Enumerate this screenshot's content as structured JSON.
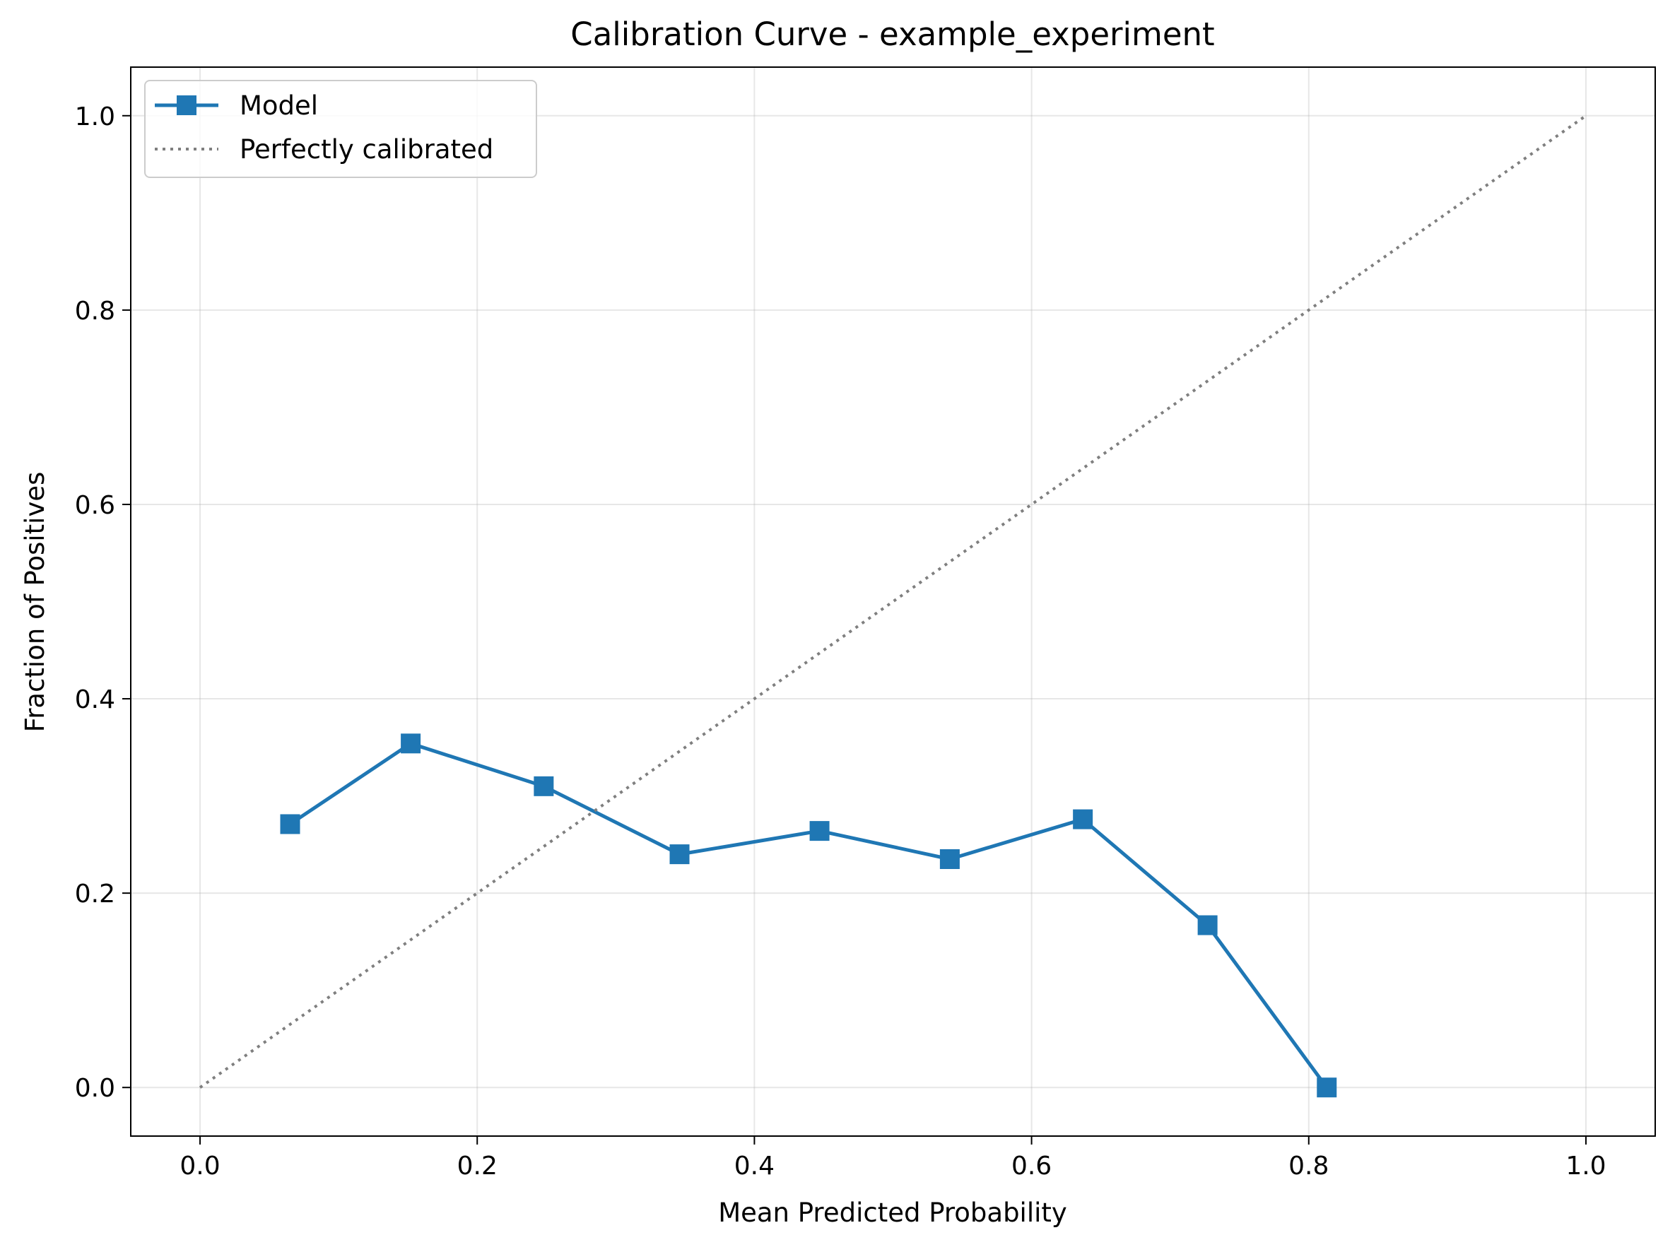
{
  "chart_data": {
    "type": "line",
    "title": "Calibration Curve - example_experiment",
    "xlabel": "Mean Predicted Probability",
    "ylabel": "Fraction of Positives",
    "xlim": [
      -0.05,
      1.05
    ],
    "ylim": [
      -0.05,
      1.05
    ],
    "xticks": [
      "0.0",
      "0.2",
      "0.4",
      "0.6",
      "0.8",
      "1.0"
    ],
    "yticks": [
      "0.0",
      "0.2",
      "0.4",
      "0.6",
      "0.8",
      "1.0"
    ],
    "grid": true,
    "legend_position": "top-left",
    "series": [
      {
        "name": "Model",
        "style": "solid-square-markers",
        "color": "#1f77b4",
        "x": [
          0.065,
          0.152,
          0.248,
          0.346,
          0.447,
          0.541,
          0.637,
          0.727,
          0.813
        ],
        "y": [
          0.271,
          0.354,
          0.31,
          0.24,
          0.264,
          0.235,
          0.276,
          0.167,
          0.0
        ]
      },
      {
        "name": "Perfectly calibrated",
        "style": "dotted",
        "color": "#7f7f7f",
        "x": [
          0.0,
          1.0
        ],
        "y": [
          0.0,
          1.0
        ]
      }
    ]
  }
}
